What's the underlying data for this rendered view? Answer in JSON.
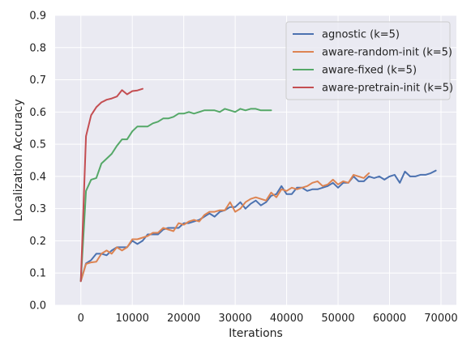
{
  "chart_data": {
    "type": "line",
    "title": "",
    "xlabel": "Iterations",
    "ylabel": "Localization Accuracy",
    "xlim": [
      -5000,
      73000
    ],
    "ylim": [
      0.0,
      0.9
    ],
    "xticks": [
      0,
      10000,
      20000,
      30000,
      40000,
      50000,
      60000,
      70000
    ],
    "xtick_labels": [
      "0",
      "10000",
      "20000",
      "30000",
      "40000",
      "50000",
      "60000",
      "70000"
    ],
    "yticks": [
      0.0,
      0.1,
      0.2,
      0.3,
      0.4,
      0.5,
      0.6,
      0.7,
      0.8,
      0.9
    ],
    "ytick_labels": [
      "0.0",
      "0.1",
      "0.2",
      "0.3",
      "0.4",
      "0.5",
      "0.6",
      "0.7",
      "0.8",
      "0.9"
    ],
    "grid": true,
    "background": "#eaeaf2",
    "legend_position": "top-right",
    "series": [
      {
        "name": "agnostic (k=5)",
        "color": "#4c72b0",
        "x": [
          0,
          1000,
          2000,
          3000,
          4000,
          5000,
          6000,
          7000,
          8000,
          9000,
          10000,
          11000,
          12000,
          13000,
          14000,
          15000,
          16000,
          17000,
          18000,
          19000,
          20000,
          21000,
          22000,
          23000,
          24000,
          25000,
          26000,
          27000,
          28000,
          29000,
          30000,
          31000,
          32000,
          33000,
          34000,
          35000,
          36000,
          37000,
          38000,
          39000,
          40000,
          41000,
          42000,
          43000,
          44000,
          45000,
          46000,
          47000,
          48000,
          49000,
          50000,
          51000,
          52000,
          53000,
          54000,
          55000,
          56000,
          57000,
          58000,
          59000,
          60000,
          61000,
          62000,
          63000,
          64000,
          65000,
          66000,
          67000,
          68000,
          69000
        ],
        "y": [
          0.075,
          0.13,
          0.14,
          0.16,
          0.16,
          0.155,
          0.17,
          0.18,
          0.18,
          0.18,
          0.2,
          0.19,
          0.2,
          0.22,
          0.22,
          0.22,
          0.235,
          0.24,
          0.24,
          0.24,
          0.255,
          0.255,
          0.26,
          0.265,
          0.275,
          0.285,
          0.275,
          0.29,
          0.295,
          0.305,
          0.305,
          0.32,
          0.3,
          0.315,
          0.325,
          0.31,
          0.32,
          0.34,
          0.345,
          0.37,
          0.345,
          0.345,
          0.365,
          0.365,
          0.355,
          0.36,
          0.36,
          0.365,
          0.37,
          0.38,
          0.365,
          0.38,
          0.38,
          0.4,
          0.385,
          0.385,
          0.4,
          0.395,
          0.4,
          0.39,
          0.4,
          0.405,
          0.38,
          0.415,
          0.4,
          0.4,
          0.405,
          0.405,
          0.41,
          0.418
        ]
      },
      {
        "name": "aware-random-init (k=5)",
        "color": "#dd8452",
        "x": [
          0,
          1000,
          2000,
          3000,
          4000,
          5000,
          6000,
          7000,
          8000,
          9000,
          10000,
          11000,
          12000,
          13000,
          14000,
          15000,
          16000,
          17000,
          18000,
          19000,
          20000,
          21000,
          22000,
          23000,
          24000,
          25000,
          26000,
          27000,
          28000,
          29000,
          30000,
          31000,
          32000,
          33000,
          34000,
          35000,
          36000,
          37000,
          38000,
          39000,
          40000,
          41000,
          42000,
          43000,
          44000,
          45000,
          46000,
          47000,
          48000,
          49000,
          50000,
          51000,
          52000,
          53000,
          54000,
          55000,
          56000
        ],
        "y": [
          0.075,
          0.128,
          0.133,
          0.135,
          0.16,
          0.17,
          0.16,
          0.18,
          0.17,
          0.18,
          0.205,
          0.205,
          0.21,
          0.215,
          0.225,
          0.225,
          0.24,
          0.235,
          0.23,
          0.255,
          0.25,
          0.26,
          0.265,
          0.26,
          0.28,
          0.29,
          0.29,
          0.295,
          0.295,
          0.32,
          0.29,
          0.3,
          0.32,
          0.33,
          0.335,
          0.33,
          0.325,
          0.35,
          0.335,
          0.36,
          0.355,
          0.365,
          0.36,
          0.365,
          0.37,
          0.38,
          0.385,
          0.37,
          0.375,
          0.39,
          0.375,
          0.385,
          0.38,
          0.405,
          0.4,
          0.395,
          0.41
        ]
      },
      {
        "name": "aware-fixed (k=5)",
        "color": "#55a868",
        "x": [
          0,
          1000,
          2000,
          3000,
          4000,
          5000,
          6000,
          7000,
          8000,
          9000,
          10000,
          11000,
          12000,
          13000,
          14000,
          15000,
          16000,
          17000,
          18000,
          19000,
          20000,
          21000,
          22000,
          23000,
          24000,
          25000,
          26000,
          27000,
          28000,
          29000,
          30000,
          31000,
          32000,
          33000,
          34000,
          35000,
          36000,
          37000
        ],
        "y": [
          0.075,
          0.355,
          0.39,
          0.395,
          0.44,
          0.455,
          0.47,
          0.495,
          0.515,
          0.515,
          0.54,
          0.555,
          0.555,
          0.555,
          0.565,
          0.57,
          0.58,
          0.58,
          0.585,
          0.595,
          0.595,
          0.6,
          0.595,
          0.6,
          0.605,
          0.605,
          0.605,
          0.6,
          0.61,
          0.605,
          0.6,
          0.61,
          0.605,
          0.61,
          0.61,
          0.605,
          0.605,
          0.605
        ]
      },
      {
        "name": "aware-pretrain-init (k=5)",
        "color": "#c44e52",
        "x": [
          0,
          1000,
          2000,
          3000,
          4000,
          5000,
          6000,
          7000,
          8000,
          9000,
          10000,
          11000,
          12000
        ],
        "y": [
          0.075,
          0.525,
          0.59,
          0.615,
          0.63,
          0.638,
          0.642,
          0.648,
          0.668,
          0.655,
          0.665,
          0.667,
          0.672
        ]
      }
    ]
  }
}
